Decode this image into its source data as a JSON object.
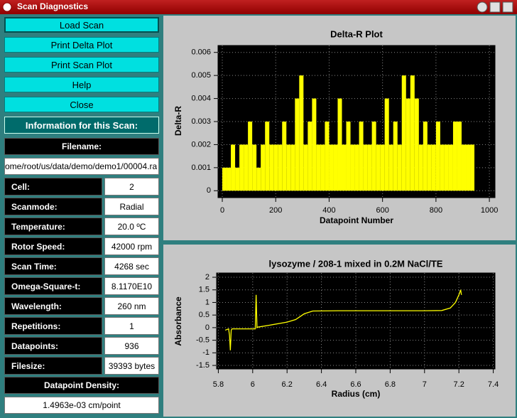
{
  "window": {
    "title": "Scan Diagnostics"
  },
  "buttons": [
    "Load Scan",
    "Print Delta Plot",
    "Print Scan Plot",
    "Help",
    "Close"
  ],
  "info": {
    "header": "Information for this Scan:",
    "filename_label": "Filename:",
    "filename": "ome/root/us/data/demo/demo1/00004.ra",
    "fields": [
      {
        "label": "Cell:",
        "value": "2"
      },
      {
        "label": "Scanmode:",
        "value": "Radial"
      },
      {
        "label": "Temperature:",
        "value": "20.0 ºC"
      },
      {
        "label": "Rotor Speed:",
        "value": "42000 rpm"
      },
      {
        "label": "Scan Time:",
        "value": "4268 sec"
      },
      {
        "label": "Omega-Square-t:",
        "value": "8.1170E10"
      },
      {
        "label": "Wavelength:",
        "value": "260 nm"
      },
      {
        "label": "Repetitions:",
        "value": "1"
      },
      {
        "label": "Datapoints:",
        "value": "936"
      },
      {
        "label": "Filesize:",
        "value": "39393 bytes"
      }
    ],
    "density_label": "Datapoint Density:",
    "density": "1.4963e-03 cm/point"
  },
  "chart_data": [
    {
      "type": "bar",
      "title": "Delta-R Plot",
      "x_label": "Datapoint Number",
      "y_label": "Delta-R",
      "x": [
        0,
        16,
        32,
        48,
        64,
        80,
        96,
        112,
        128,
        144,
        160,
        176,
        192,
        208,
        224,
        240,
        256,
        272,
        288,
        304,
        320,
        336,
        352,
        368,
        384,
        400,
        416,
        432,
        448,
        464,
        480,
        496,
        512,
        528,
        544,
        560,
        576,
        592,
        608,
        624,
        640,
        656,
        672,
        688,
        704,
        720,
        736,
        752,
        768,
        784,
        800,
        816,
        832,
        848,
        864,
        880,
        896,
        912,
        928
      ],
      "series": [
        {
          "name": "Delta-R",
          "color": "#ffff00",
          "values": [
            0.001,
            0.001,
            0.002,
            0.001,
            0.002,
            0.002,
            0.003,
            0.002,
            0.001,
            0.002,
            0.003,
            0.002,
            0.002,
            0.002,
            0.003,
            0.002,
            0.002,
            0.004,
            0.005,
            0.002,
            0.003,
            0.004,
            0.002,
            0.002,
            0.003,
            0.002,
            0.002,
            0.004,
            0.002,
            0.003,
            0.002,
            0.002,
            0.003,
            0.002,
            0.002,
            0.003,
            0.002,
            0.002,
            0.004,
            0.002,
            0.003,
            0.002,
            0.005,
            0.004,
            0.005,
            0.004,
            0.002,
            0.003,
            0.002,
            0.002,
            0.003,
            0.002,
            0.002,
            0.002,
            0.003,
            0.003,
            0.002,
            0.002,
            0.002
          ]
        }
      ],
      "xlim": [
        -16,
        1021
      ],
      "xticks": [
        0,
        200,
        400,
        600,
        800,
        1000
      ],
      "ylim": [
        -0.0003,
        0.0063
      ],
      "yticks": [
        0,
        0.001,
        0.002,
        0.003,
        0.004,
        0.005,
        0.006
      ],
      "grid": true,
      "background": "#000000"
    },
    {
      "type": "line",
      "title": "lysozyme / 208-1 mixed in 0.2M NaCl/TE",
      "x_label": "Radius (cm)",
      "y_label": "Absorbance",
      "x": [
        5.84,
        5.86,
        5.865,
        5.87,
        5.875,
        5.88,
        5.95,
        6.015,
        6.02,
        6.025,
        6.03,
        6.1,
        6.2,
        6.25,
        6.3,
        6.35,
        6.5,
        6.8,
        7.0,
        7.1,
        7.15,
        7.18,
        7.2,
        7.21,
        7.215
      ],
      "series": [
        {
          "name": "Absorbance",
          "color": "#ffff00",
          "values": [
            -0.1,
            -0.05,
            -0.3,
            -0.9,
            -0.1,
            -0.05,
            -0.05,
            -0.05,
            1.3,
            0.0,
            0.02,
            0.1,
            0.22,
            0.32,
            0.55,
            0.66,
            0.67,
            0.67,
            0.67,
            0.68,
            0.78,
            1.0,
            1.3,
            1.5,
            1.3
          ]
        }
      ],
      "xlim": [
        5.79,
        7.41
      ],
      "xticks": [
        5.8,
        6,
        6.2,
        6.4,
        6.6,
        6.8,
        7,
        7.2,
        7.4
      ],
      "ylim": [
        -1.64,
        2.17
      ],
      "yticks": [
        -1.5,
        -1,
        -0.5,
        0,
        0.5,
        1,
        1.5,
        2
      ],
      "grid": true,
      "background": "#000000"
    }
  ]
}
